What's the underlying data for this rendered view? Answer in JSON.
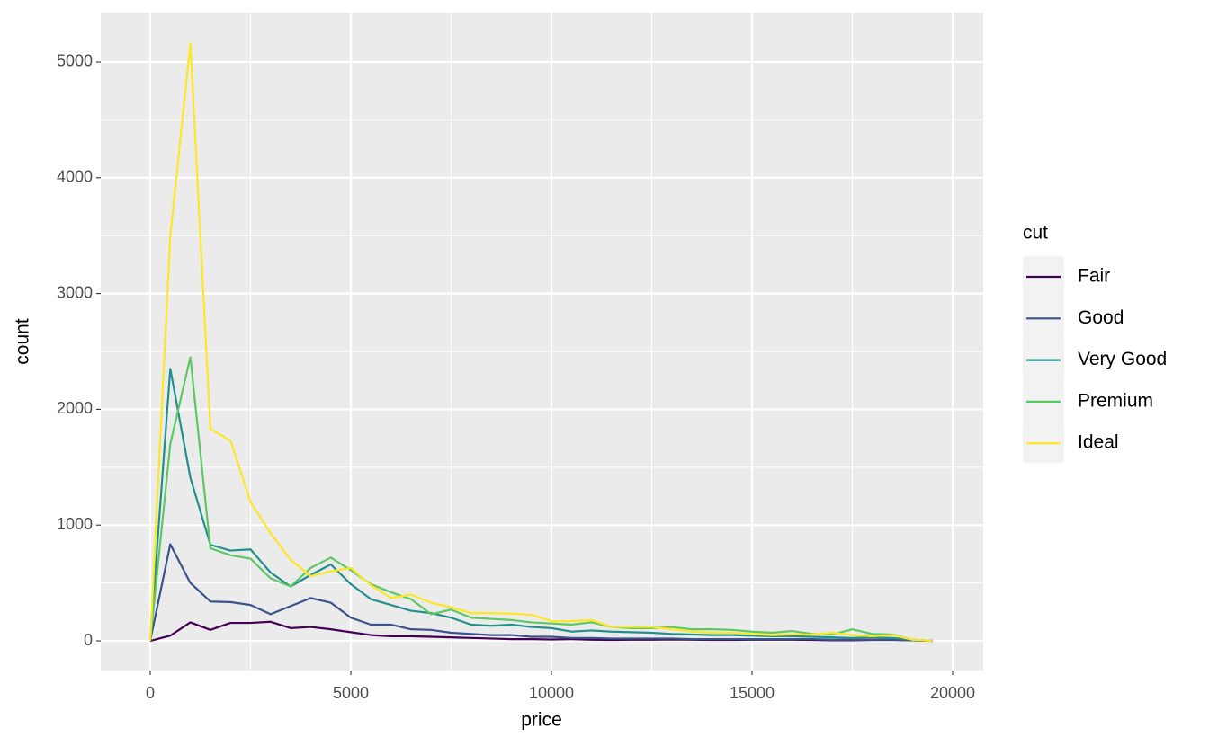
{
  "chart_data": {
    "type": "line",
    "x_label": "price",
    "y_label": "count",
    "legend_title": "cut",
    "legend_position": "right",
    "grid": true,
    "x": [
      0,
      500,
      1000,
      1500,
      2000,
      2500,
      3000,
      3500,
      4000,
      4500,
      5000,
      5500,
      6000,
      6500,
      7000,
      7500,
      8000,
      8500,
      9000,
      9500,
      10000,
      10500,
      11000,
      11500,
      12000,
      12500,
      13000,
      13500,
      14000,
      14500,
      15000,
      15500,
      16000,
      16500,
      17000,
      17500,
      18000,
      18500,
      19000,
      19500
    ],
    "xlim": [
      -1233,
      20762
    ],
    "xticks": [
      0,
      5000,
      10000,
      15000,
      20000
    ],
    "ylim": [
      -256,
      5427
    ],
    "yticks": [
      0,
      1000,
      2000,
      3000,
      4000,
      5000
    ],
    "series": [
      {
        "name": "Fair",
        "color": "#440154",
        "values": [
          0,
          45,
          160,
          95,
          155,
          155,
          165,
          110,
          120,
          100,
          75,
          50,
          40,
          40,
          35,
          30,
          25,
          20,
          15,
          15,
          12,
          15,
          10,
          8,
          10,
          10,
          12,
          10,
          8,
          8,
          10,
          10,
          10,
          8,
          5,
          5,
          8,
          8,
          5,
          0
        ]
      },
      {
        "name": "Good",
        "color": "#3B528B",
        "values": [
          0,
          835,
          500,
          340,
          335,
          310,
          230,
          300,
          370,
          330,
          200,
          140,
          140,
          100,
          95,
          70,
          60,
          50,
          50,
          35,
          35,
          25,
          25,
          20,
          20,
          20,
          20,
          15,
          15,
          15,
          15,
          15,
          15,
          15,
          10,
          10,
          10,
          10,
          5,
          0
        ]
      },
      {
        "name": "Very Good",
        "color": "#21908C",
        "values": [
          0,
          2350,
          1410,
          830,
          780,
          790,
          590,
          470,
          570,
          660,
          490,
          360,
          310,
          260,
          240,
          200,
          140,
          130,
          140,
          120,
          110,
          80,
          90,
          80,
          75,
          70,
          60,
          55,
          50,
          50,
          45,
          40,
          40,
          35,
          30,
          25,
          30,
          25,
          10,
          0
        ]
      },
      {
        "name": "Premium",
        "color": "#5DC863",
        "values": [
          0,
          1700,
          2450,
          800,
          740,
          710,
          540,
          470,
          630,
          720,
          610,
          490,
          420,
          360,
          230,
          270,
          200,
          190,
          180,
          160,
          150,
          140,
          160,
          120,
          110,
          110,
          120,
          100,
          100,
          95,
          80,
          70,
          85,
          60,
          55,
          100,
          60,
          55,
          10,
          0
        ]
      },
      {
        "name": "Ideal",
        "color": "#FDE725",
        "values": [
          0,
          3500,
          5160,
          1830,
          1730,
          1200,
          930,
          700,
          560,
          600,
          630,
          480,
          370,
          400,
          330,
          290,
          240,
          240,
          235,
          225,
          170,
          170,
          180,
          120,
          120,
          120,
          100,
          80,
          70,
          70,
          60,
          50,
          55,
          55,
          70,
          50,
          40,
          50,
          10,
          0
        ]
      }
    ]
  }
}
